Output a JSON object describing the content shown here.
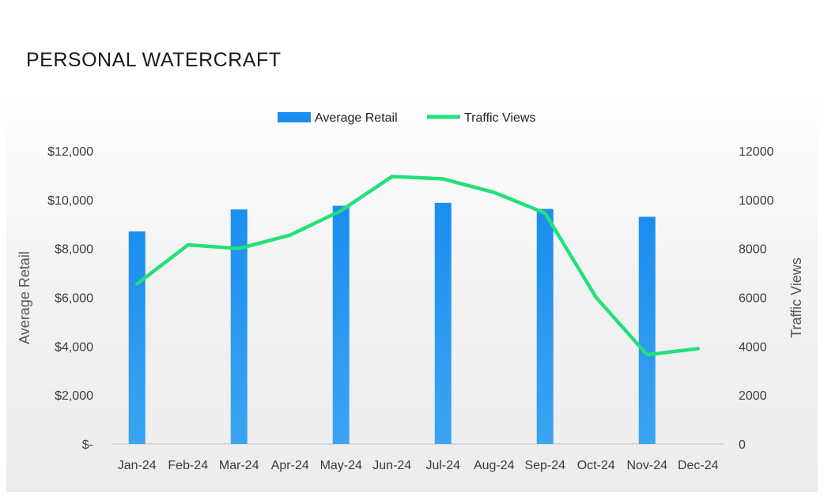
{
  "page": {
    "title": "PERSONAL WATERCRAFT"
  },
  "colors": {
    "bar": "#1a8ef0",
    "bar_light": "#3aa4f2",
    "line": "#22e07a",
    "axis": "#bfbfbf"
  },
  "chart_data": {
    "type": "bar+line",
    "categories": [
      "Jan-24",
      "Feb-24",
      "Mar-24",
      "Apr-24",
      "May-24",
      "Jun-24",
      "Jul-24",
      "Aug-24",
      "Sep-24",
      "Oct-24",
      "Nov-24",
      "Dec-24"
    ],
    "series": [
      {
        "name": "Average Retail",
        "type": "bar",
        "axis": "left",
        "values": [
          8700,
          null,
          9600,
          null,
          9750,
          null,
          9870,
          null,
          9620,
          null,
          9300,
          null
        ]
      },
      {
        "name": "Traffic Views",
        "type": "line",
        "axis": "right",
        "values": [
          6550,
          8150,
          8000,
          8550,
          9550,
          10950,
          10850,
          10300,
          9450,
          6000,
          3650,
          3900
        ]
      }
    ],
    "left_axis": {
      "title": "Average Retail",
      "ylim": [
        0,
        12000
      ],
      "tick_labels": [
        "$-",
        "$2,000",
        "$4,000",
        "$6,000",
        "$8,000",
        "$10,000",
        "$12,000"
      ]
    },
    "right_axis": {
      "title": "Traffic Views",
      "ylim": [
        0,
        12000
      ],
      "tick_labels": [
        "0",
        "2000",
        "4000",
        "6000",
        "8000",
        "10000",
        "12000"
      ]
    },
    "legend": {
      "position": "top-center",
      "items": [
        "Average Retail",
        "Traffic Views"
      ]
    },
    "grid": false
  }
}
